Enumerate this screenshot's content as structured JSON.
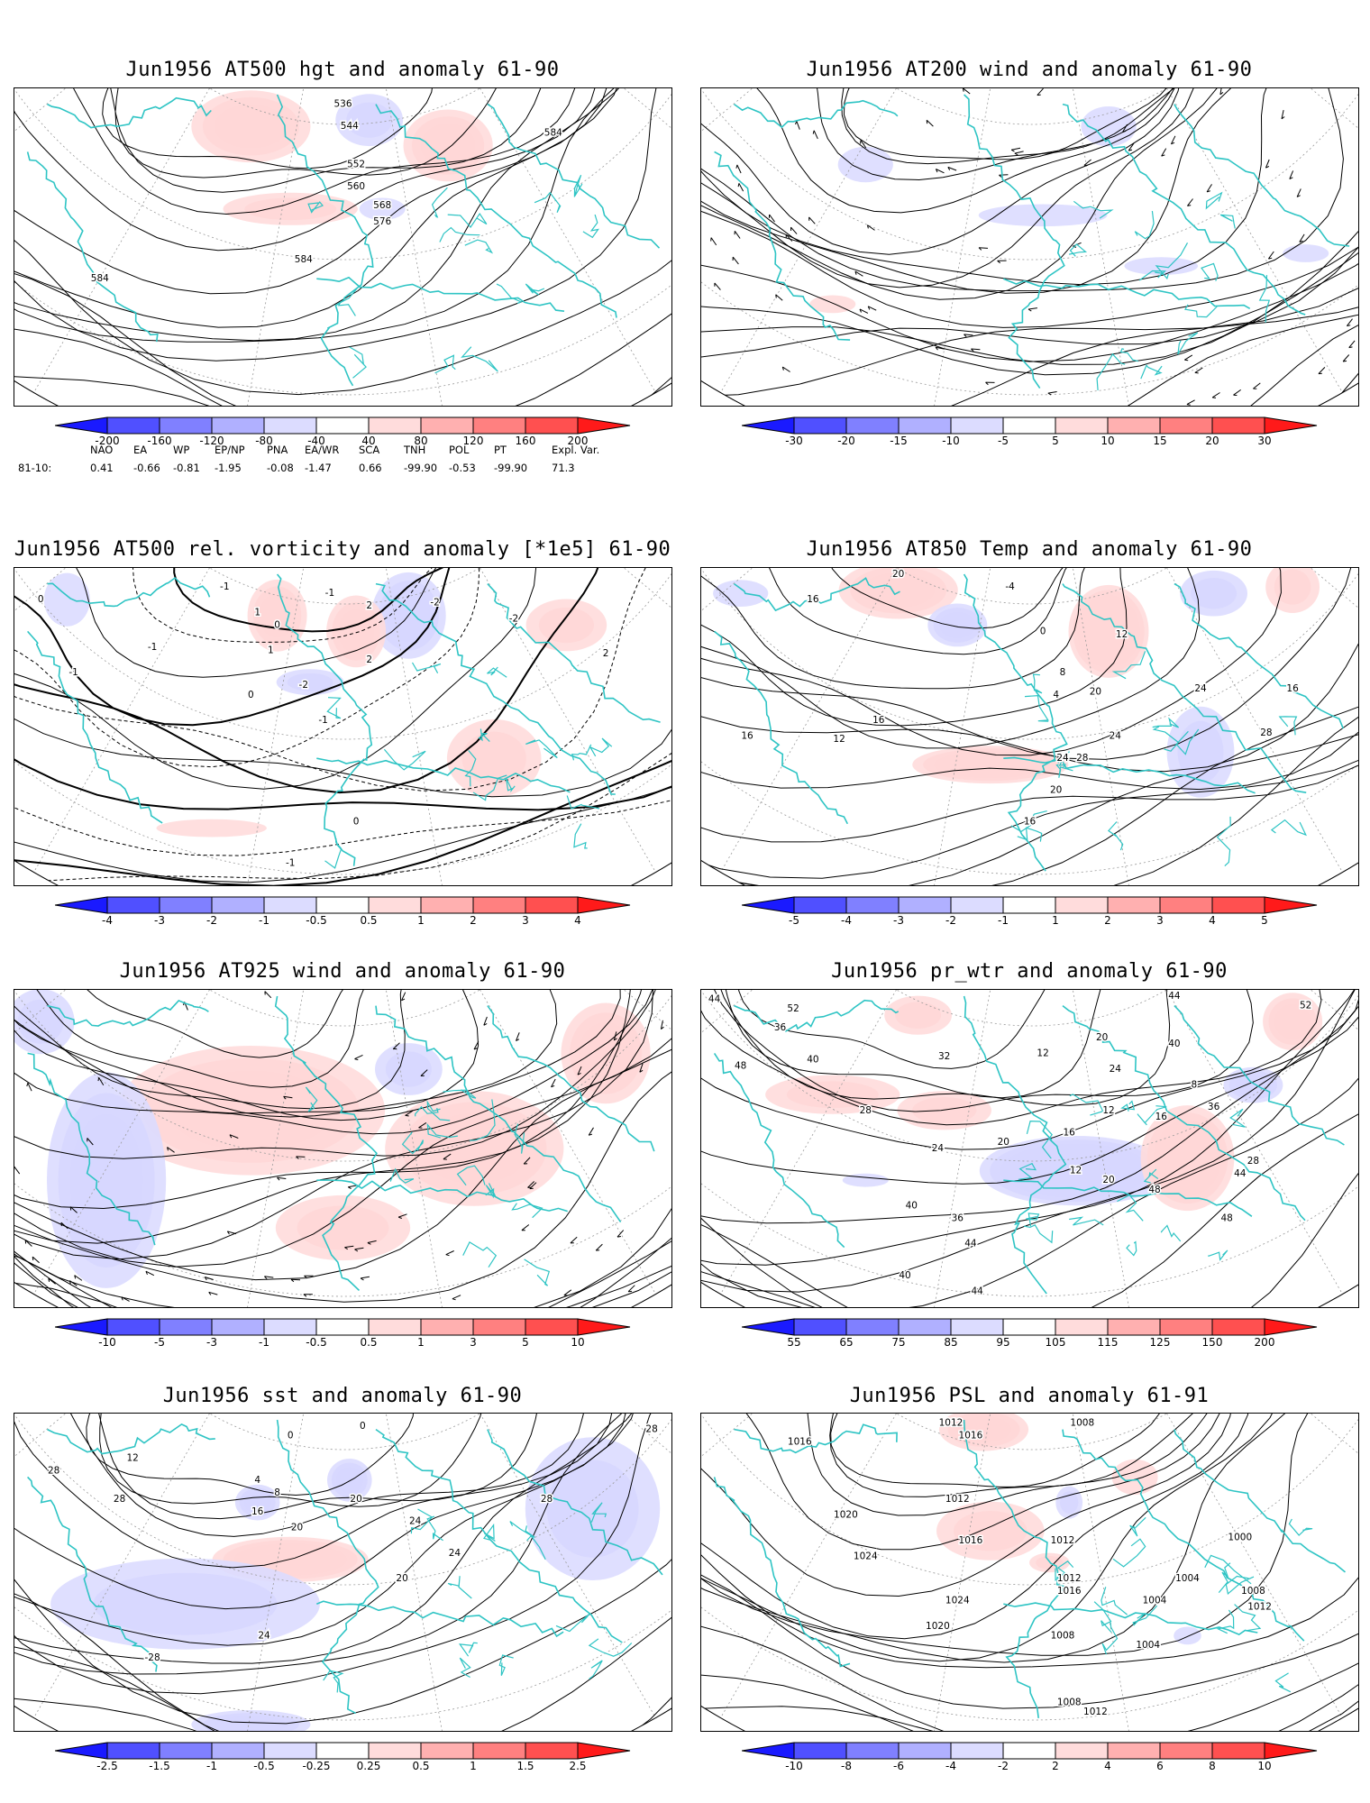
{
  "panels": [
    {
      "title": "Jun1956 AT500 hgt and anomaly 61-90",
      "contour_labels": [
        "536",
        "544",
        "552",
        "560",
        "568",
        "576",
        "584",
        "584",
        "584"
      ],
      "colorbar": [
        "-200",
        "-160",
        "-120",
        "-80",
        "-40",
        "40",
        "80",
        "120",
        "160",
        "200"
      ]
    },
    {
      "title": "Jun1956 AT200 wind and anomaly 61-90",
      "contour_labels": [],
      "colorbar": [
        "-30",
        "-20",
        "-15",
        "-10",
        "-5",
        "5",
        "10",
        "15",
        "20",
        "30"
      ]
    },
    {
      "title": "Jun1956 AT500 rel. vorticity and anomaly [*1e5] 61-90",
      "contour_labels": [
        "0",
        "-1",
        "-1",
        "2",
        "-2",
        "-2",
        "1",
        "-1",
        "0",
        "0",
        "-1",
        "1",
        "2",
        "-1",
        "-2",
        "2",
        "0",
        "-1"
      ],
      "colorbar": [
        "-4",
        "-3",
        "-2",
        "-1",
        "-0.5",
        "0.5",
        "1",
        "2",
        "3",
        "4"
      ]
    },
    {
      "title": "Jun1956 AT850 Temp and anomaly 61-90",
      "contour_labels": [
        "20",
        "16",
        "-4",
        "0",
        "12",
        "8",
        "4",
        "16",
        "12",
        "16",
        "20",
        "24",
        "28",
        "24",
        "20",
        "16",
        "28",
        "24",
        "16"
      ],
      "colorbar": [
        "-5",
        "-4",
        "-3",
        "-2",
        "-1",
        "1",
        "2",
        "3",
        "4",
        "5"
      ]
    },
    {
      "title": "Jun1956 AT925 wind and anomaly 61-90",
      "contour_labels": [],
      "colorbar": [
        "-10",
        "-5",
        "-3",
        "-1",
        "-0.5",
        "0.5",
        "1",
        "3",
        "5",
        "10"
      ]
    },
    {
      "title": "Jun1956 pr_wtr and anomaly 61-90",
      "contour_labels": [
        "44",
        "52",
        "36",
        "48",
        "40",
        "32",
        "28",
        "24",
        "20",
        "16",
        "12",
        "8",
        "12",
        "20",
        "24",
        "16",
        "12",
        "20",
        "36",
        "40",
        "44",
        "48",
        "44",
        "48",
        "52",
        "44",
        "40",
        "36",
        "28",
        "40",
        "44"
      ],
      "colorbar": [
        "55",
        "65",
        "75",
        "85",
        "95",
        "105",
        "115",
        "125",
        "150",
        "200"
      ]
    },
    {
      "title": "Jun1956 sst and anomaly 61-90",
      "contour_labels": [
        "28",
        "28",
        "24",
        "20",
        "16",
        "12",
        "8",
        "4",
        "0",
        "0",
        "20",
        "24",
        "28",
        "28",
        "24",
        "-28",
        "20"
      ],
      "colorbar": [
        "-2.5",
        "-1.5",
        "-1",
        "-0.5",
        "-0.25",
        "0.25",
        "0.5",
        "1",
        "1.5",
        "2.5"
      ]
    },
    {
      "title": "Jun1956 PSL and anomaly 61-91",
      "contour_labels": [
        "1016",
        "1012",
        "1016",
        "1008",
        "1012",
        "1020",
        "1016",
        "1024",
        "1024",
        "1020",
        "1012",
        "1016",
        "1012",
        "1008",
        "1004",
        "1000",
        "1004",
        "1008",
        "1012",
        "1004",
        "1008",
        "1012"
      ],
      "colorbar": [
        "-10",
        "-8",
        "-6",
        "-4",
        "-2",
        "2",
        "4",
        "6",
        "8",
        "10"
      ]
    }
  ],
  "teleconnection_table": {
    "headers": [
      "NAO",
      "EA",
      "WP",
      "EP/NP",
      "PNA",
      "EA/WR",
      "SCA",
      "TNH",
      "POL",
      "PT",
      "Expl. Var."
    ],
    "row_label": "81-10:",
    "values": [
      "0.41",
      "-0.66",
      "-0.81",
      "-1.95",
      "-0.08",
      "-1.47",
      "0.66",
      "-99.90",
      "-0.53",
      "-99.90",
      "71.3"
    ]
  },
  "colors": {
    "coast": "#2ec4c4",
    "contour": "#000000",
    "colorbar": [
      "#1a1aff",
      "#5050ff",
      "#8080ff",
      "#b0b0ff",
      "#dcdcff",
      "#ffffff",
      "#ffdcdc",
      "#ffb0b0",
      "#ff8080",
      "#ff5050",
      "#ff1a1a"
    ]
  }
}
